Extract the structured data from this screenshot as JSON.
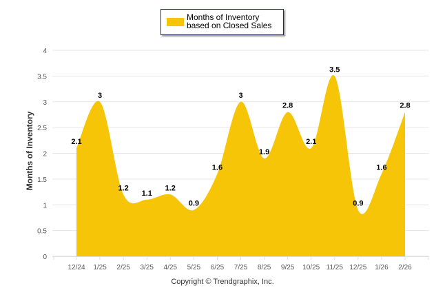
{
  "chart_data": {
    "type": "area",
    "title": "",
    "legend": {
      "entries": [
        "Months of Inventory based on Closed Sales"
      ],
      "placement": "top-center"
    },
    "series": [
      {
        "name": "Months of Inventory based on Closed Sales",
        "color": "#f7c508",
        "values": [
          2.1,
          3,
          1.2,
          1.1,
          1.2,
          0.9,
          1.6,
          3,
          1.9,
          2.8,
          2.1,
          3.5,
          0.9,
          1.6,
          2.8
        ]
      }
    ],
    "categories": [
      "12/24",
      "1/25",
      "2/25",
      "3/25",
      "4/25",
      "5/25",
      "6/25",
      "7/25",
      "8/25",
      "9/25",
      "10/25",
      "11/25",
      "12/25",
      "1/26",
      "2/26"
    ],
    "data_labels": [
      "2.1",
      "3",
      "1.2",
      "1.1",
      "1.2",
      "0.9",
      "1.6",
      "3",
      "1.9",
      "2.8",
      "2.1",
      "3.5",
      "0.9",
      "1.6",
      "2.8"
    ],
    "xlabel": "",
    "ylabel": "Months of Inventory",
    "ylim": [
      0,
      4
    ],
    "yticks": [
      "0",
      "0.5",
      "1",
      "1.5",
      "2",
      "2.5",
      "3",
      "3.5",
      "4"
    ],
    "grid": true,
    "footer": "Copyright © Trendgraphix, Inc."
  }
}
